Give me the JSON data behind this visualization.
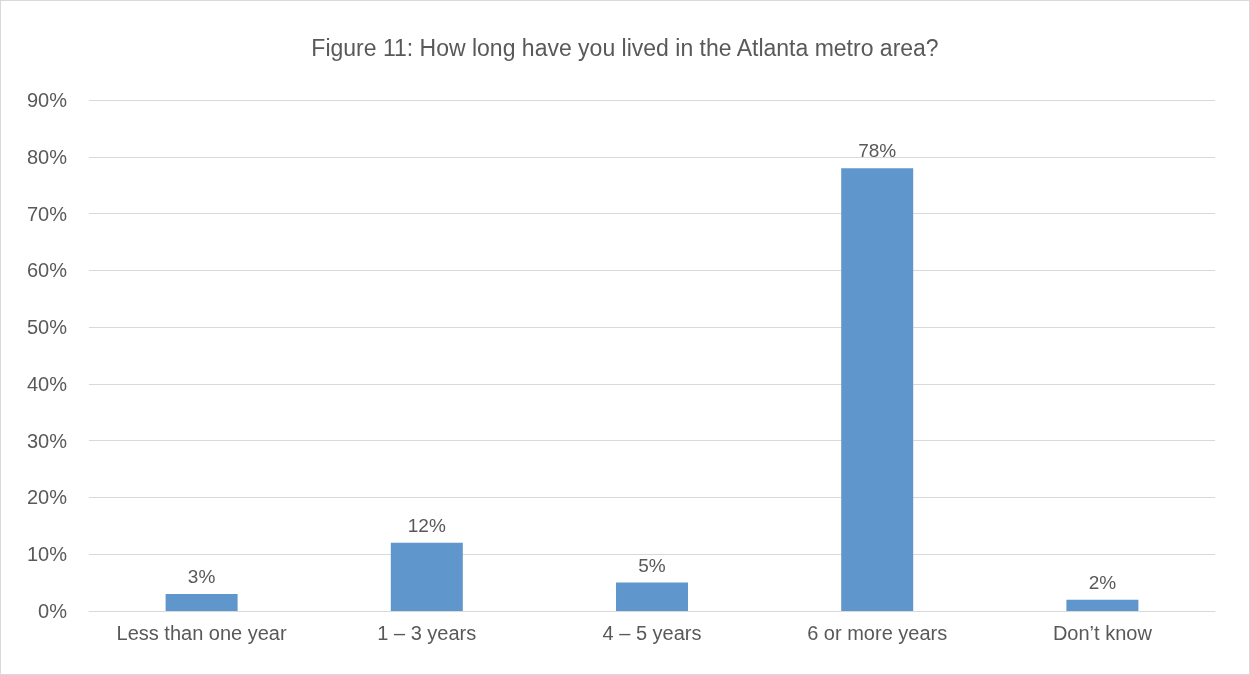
{
  "chart_data": {
    "type": "bar",
    "title": "Figure 11: How long have you lived in the Atlanta metro area?",
    "categories": [
      "Less than one year",
      "1 – 3 years",
      "4 – 5 years",
      "6 or more years",
      "Don’t know"
    ],
    "values": [
      3,
      12,
      5,
      78,
      2
    ],
    "color": "#5f96cb",
    "value_labels": [
      "3%",
      "12%",
      "5%",
      "78%",
      "2%"
    ],
    "ylim": [
      0,
      90
    ],
    "yticks": [
      {
        "value": 0,
        "label": "0%"
      },
      {
        "value": 10,
        "label": "10%"
      },
      {
        "value": 20,
        "label": "20%"
      },
      {
        "value": 30,
        "label": "30%"
      },
      {
        "value": 40,
        "label": "40%"
      },
      {
        "value": 50,
        "label": "50%"
      },
      {
        "value": 60,
        "label": "60%"
      },
      {
        "value": 70,
        "label": "70%"
      },
      {
        "value": 80,
        "label": "80%"
      },
      {
        "value": 90,
        "label": "90%"
      }
    ],
    "grid": true
  }
}
